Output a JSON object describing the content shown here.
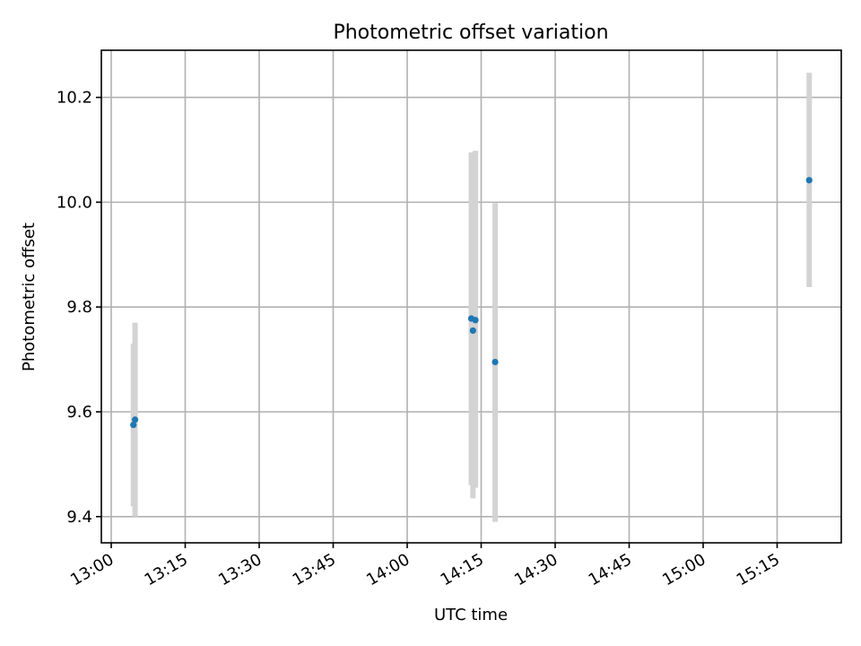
{
  "chart_data": {
    "type": "scatter",
    "title": "Photometric offset variation",
    "xlabel": "UTC time",
    "ylabel": "Photometric offset",
    "x_tick_labels": [
      "13:00",
      "13:15",
      "13:30",
      "13:45",
      "14:00",
      "14:15",
      "14:30",
      "14:45",
      "15:00",
      "15:15"
    ],
    "y_tick_labels": [
      "9.4",
      "9.6",
      "9.8",
      "10.0",
      "10.2"
    ],
    "xlim": [
      "12:58",
      "15:28"
    ],
    "ylim": [
      9.35,
      10.29
    ],
    "grid": true,
    "error_bars": true,
    "colors": {
      "points": "#1f77b4",
      "error_bars": "#d3d3d3",
      "grid": "#b0b0b0"
    },
    "points": [
      {
        "x": "13:04:30",
        "y": 9.575,
        "yerr_low": 9.42,
        "yerr_high": 9.73
      },
      {
        "x": "13:04:50",
        "y": 9.585,
        "yerr_low": 9.4,
        "yerr_high": 9.77
      },
      {
        "x": "14:13:00",
        "y": 9.778,
        "yerr_low": 9.46,
        "yerr_high": 10.095
      },
      {
        "x": "14:13:20",
        "y": 9.755,
        "yerr_low": 9.435,
        "yerr_high": 10.075
      },
      {
        "x": "14:13:50",
        "y": 9.775,
        "yerr_low": 9.455,
        "yerr_high": 10.098
      },
      {
        "x": "14:17:50",
        "y": 9.695,
        "yerr_low": 9.39,
        "yerr_high": 9.998
      },
      {
        "x": "15:21:30",
        "y": 10.042,
        "yerr_low": 9.838,
        "yerr_high": 10.247
      }
    ]
  }
}
